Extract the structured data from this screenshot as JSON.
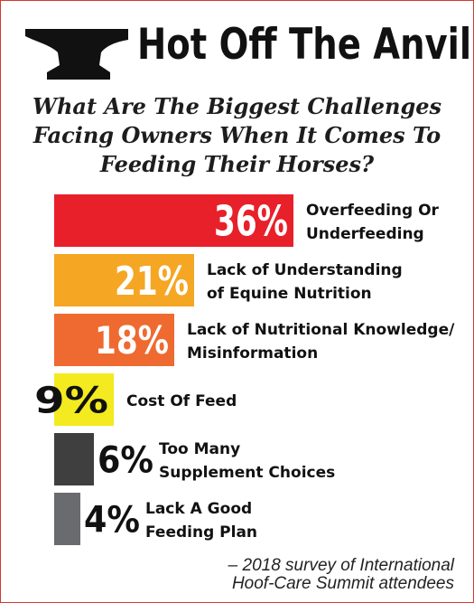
{
  "brand": {
    "title": "Hot Off The Anvil",
    "icon": "anvil-icon"
  },
  "question": {
    "lines": [
      "What Are The Biggest Challenges",
      "Facing Owners When It Comes To",
      "Feeding Their Horses?"
    ]
  },
  "chart_data": {
    "type": "bar",
    "orientation": "horizontal",
    "categories": [
      "Overfeeding Or Underfeeding",
      "Lack of Understanding of Equine Nutrition",
      "Lack of Nutritional Knowledge/ Misinformation",
      "Cost Of Feed",
      "Too Many Supplement Choices",
      "Lack A Good Feeding Plan"
    ],
    "category_lines": [
      [
        "Overfeeding Or",
        "Underfeeding"
      ],
      [
        "Lack of Understanding",
        "of Equine Nutrition"
      ],
      [
        "Lack of Nutritional Knowledge/",
        "Misinformation"
      ],
      [
        "Cost Of Feed"
      ],
      [
        "Too Many",
        "Supplement Choices"
      ],
      [
        "Lack A Good",
        "Feeding Plan"
      ]
    ],
    "values": [
      36,
      21,
      18,
      9,
      6,
      4
    ],
    "value_labels": [
      "36%",
      "21%",
      "18%",
      "9%",
      "6%",
      "4%"
    ],
    "colors": [
      "#e8202a",
      "#f5a623",
      "#ee6a30",
      "#f3ea1f",
      "#3f3f40",
      "#6a6b6e"
    ],
    "value_label_colors": [
      "#ffffff",
      "#ffffff",
      "#ffffff",
      "#111111",
      "#111111",
      "#111111"
    ],
    "title": "What Are The Biggest Challenges Facing Owners When It Comes To Feeding Their Horses?",
    "legend": "none",
    "grid": false
  },
  "source": {
    "lines": [
      "– 2018 survey of International",
      "Hoof-Care Summit attendees"
    ]
  }
}
